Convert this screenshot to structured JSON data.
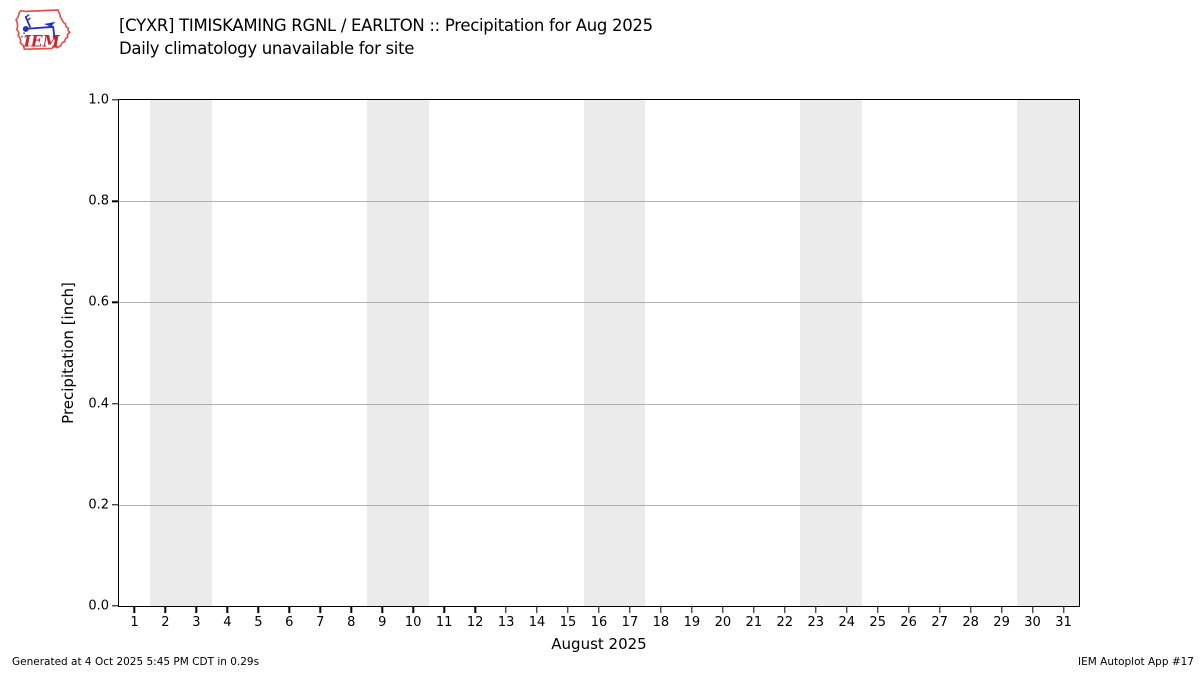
{
  "header": {
    "logo_text": "IEM",
    "title": "[CYXR] TIMISKAMING RGNL / EARLTON :: Precipitation for Aug 2025",
    "subtitle": "Daily climatology unavailable for site"
  },
  "footer": {
    "generated": "Generated at 4 Oct 2025 5:45 PM CDT in 0.29s",
    "credit": "IEM Autoplot App #17"
  },
  "chart_data": {
    "type": "bar",
    "title": "[CYXR] TIMISKAMING RGNL / EARLTON :: Precipitation for Aug 2025",
    "subtitle": "Daily climatology unavailable for site",
    "xlabel": "August 2025",
    "ylabel": "Precipitation [inch]",
    "categories": [
      1,
      2,
      3,
      4,
      5,
      6,
      7,
      8,
      9,
      10,
      11,
      12,
      13,
      14,
      15,
      16,
      17,
      18,
      19,
      20,
      21,
      22,
      23,
      24,
      25,
      26,
      27,
      28,
      29,
      30,
      31
    ],
    "values": [],
    "xlim": [
      0.5,
      31.5
    ],
    "ylim": [
      0.0,
      1.0
    ],
    "y_tick_labels": [
      "0.0",
      "0.2",
      "0.4",
      "0.6",
      "0.8",
      "1.0"
    ],
    "grid": "horizontal",
    "legend": "none",
    "weekend_bands": [
      [
        1.5,
        3.5
      ],
      [
        8.5,
        10.5
      ],
      [
        15.5,
        17.5
      ],
      [
        22.5,
        24.5
      ],
      [
        29.5,
        31.5
      ]
    ],
    "colors": {
      "band": "#ebebeb",
      "gridline": "#b0b0b0",
      "spine": "#000000",
      "logo_red": "#cc2229",
      "logo_outline_red": "#e05252",
      "logo_blue": "#2431b8"
    }
  }
}
